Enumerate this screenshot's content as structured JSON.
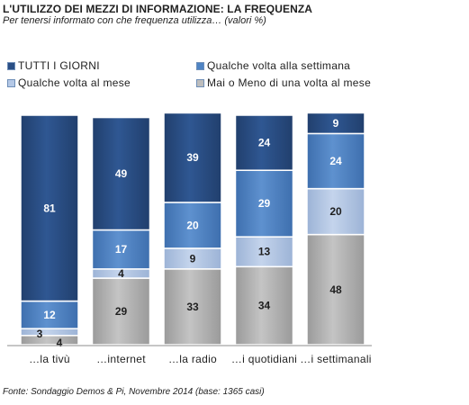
{
  "chart_data": {
    "type": "bar",
    "stacked": true,
    "percent": true,
    "title": "L'UTILIZZO  DEI MEZZI DI INFORMAZIONE:  LA FREQUENZA",
    "subtitle": "Per tenersi informato con che frequenza utilizza… (valori %)",
    "source": "Fonte: Sondaggio Demos & Pi, Novembre 2014 (base: 1365 casi)",
    "categories": [
      "…la tivù",
      "…internet",
      "…la radio",
      "…i quotidiani",
      "…i settimanali"
    ],
    "series": [
      {
        "name": "Mai o Meno di una volta al mese",
        "values": [
          4,
          29,
          33,
          34,
          48
        ],
        "color": "#bdbdbd",
        "text_color": "#1f1f1f"
      },
      {
        "name": "Qualche volta al mese",
        "values": [
          3,
          4,
          9,
          13,
          20
        ],
        "color": "#b4c8e6",
        "text_color": "#1f1f1f"
      },
      {
        "name": "Qualche volta alla settimana",
        "values": [
          12,
          17,
          20,
          29,
          24
        ],
        "color": "#4f84c4",
        "text_color": "#ffffff"
      },
      {
        "name": "TUTTI I GIORNI",
        "values": [
          81,
          49,
          39,
          24,
          9
        ],
        "color": "#2a4f85",
        "text_color": "#ffffff"
      }
    ],
    "legend_order": [
      "TUTTI I GIORNI",
      "Qualche volta alla settimana",
      "Qualche volta al mese",
      "Mai o Meno di una volta al mese"
    ],
    "legend_position": "top",
    "ylim": [
      0,
      100
    ],
    "grid": false
  }
}
